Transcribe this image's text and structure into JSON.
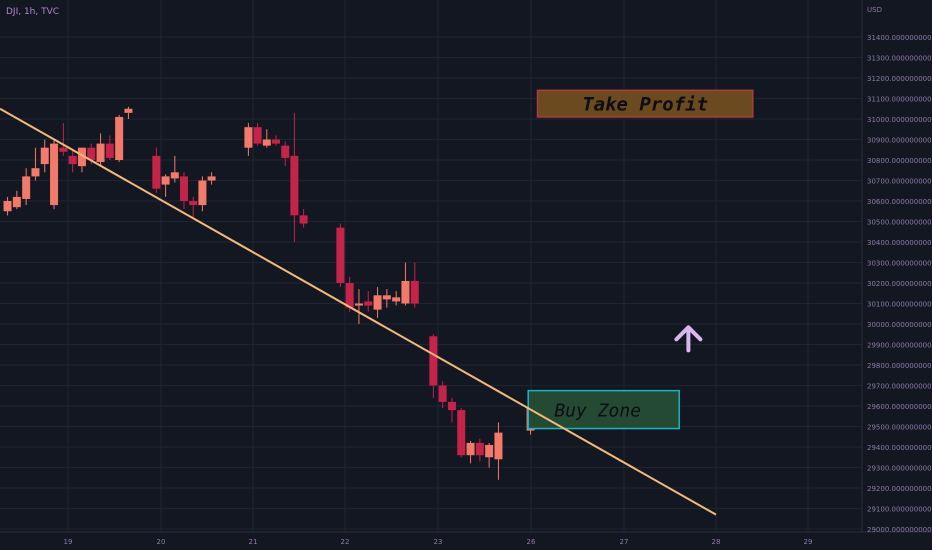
{
  "header": {
    "symbol_label": "DJI, 1h, TVC"
  },
  "price_axis": {
    "currency": "USD",
    "ticks": [
      "31400.000000000",
      "31300.000000000",
      "31200.000000000",
      "31100.000000000",
      "31000.000000000",
      "30900.000000000",
      "30800.000000000",
      "30700.000000000",
      "30600.000000000",
      "30500.000000000",
      "30400.000000000",
      "30300.000000000",
      "30200.000000000",
      "30100.000000000",
      "30000.000000000",
      "29900.000000000",
      "29800.000000000",
      "29700.000000000",
      "29600.000000000",
      "29500.000000000",
      "29400.000000000",
      "29300.000000000",
      "29200.000000000",
      "29100.000000000",
      "29000.000000000"
    ]
  },
  "time_axis": {
    "ticks": [
      "19",
      "20",
      "21",
      "22",
      "23",
      "26",
      "27",
      "28",
      "29"
    ]
  },
  "annotations": {
    "take_profit": {
      "label": "Take Profit",
      "fill": "#6b4a1f",
      "border": "#b23a3a",
      "price_top": 31140,
      "price_bottom": 31010,
      "from": "25.9",
      "to": "28.4"
    },
    "buy_zone": {
      "label": "Buy Zone",
      "fill": "#244a33",
      "border": "#16b6c4",
      "price_top": 29675,
      "price_bottom": 29490,
      "from": "25.7",
      "to": "27.6"
    },
    "arrow": {
      "direction": "up",
      "color": "#d7b8e8",
      "price": 29930,
      "time": "27.7"
    },
    "trendline": {
      "color": "#f5b97a",
      "from": {
        "time": "18.3",
        "price": 31050
      },
      "to": {
        "time": "28.0",
        "price": 29070
      }
    }
  },
  "colors": {
    "bull": "#f27a6a",
    "bear": "#c4234a",
    "grid": "#1f2433",
    "axis_text": "#8f7aa8",
    "background": "#131722"
  },
  "chart_data": {
    "type": "candlestick",
    "y_unit": "USD",
    "ylim": [
      29000,
      31400
    ],
    "grid": true,
    "series": [
      {
        "candles": [
          {
            "t": "18.35",
            "o": 30550,
            "h": 30620,
            "l": 30530,
            "c": 30600
          },
          {
            "t": "18.45",
            "o": 30570,
            "h": 30650,
            "l": 30560,
            "c": 30620
          },
          {
            "t": "18.55",
            "o": 30610,
            "h": 30760,
            "l": 30580,
            "c": 30720
          },
          {
            "t": "18.65",
            "o": 30720,
            "h": 30860,
            "l": 30700,
            "c": 30760
          },
          {
            "t": "18.75",
            "o": 30780,
            "h": 30900,
            "l": 30740,
            "c": 30860
          },
          {
            "t": "18.85",
            "o": 30580,
            "h": 30900,
            "l": 30560,
            "c": 30880
          },
          {
            "t": "18.95",
            "o": 30860,
            "h": 30980,
            "l": 30820,
            "c": 30840
          },
          {
            "t": "19.05",
            "o": 30820,
            "h": 30850,
            "l": 30740,
            "c": 30780
          },
          {
            "t": "19.15",
            "o": 30770,
            "h": 30860,
            "l": 30740,
            "c": 30860
          },
          {
            "t": "19.25",
            "o": 30860,
            "h": 30880,
            "l": 30780,
            "c": 30800
          },
          {
            "t": "19.35",
            "o": 30790,
            "h": 30930,
            "l": 30770,
            "c": 30880
          },
          {
            "t": "19.45",
            "o": 30880,
            "h": 30920,
            "l": 30800,
            "c": 30810
          },
          {
            "t": "19.55",
            "o": 30800,
            "h": 31020,
            "l": 30790,
            "c": 31010
          },
          {
            "t": "19.65",
            "o": 31030,
            "h": 31060,
            "l": 31000,
            "c": 31050
          },
          {
            "t": "19.95",
            "o": 30820,
            "h": 30860,
            "l": 30640,
            "c": 30660
          },
          {
            "t": "20.05",
            "o": 30680,
            "h": 30730,
            "l": 30620,
            "c": 30720
          },
          {
            "t": "20.15",
            "o": 30710,
            "h": 30820,
            "l": 30690,
            "c": 30740
          },
          {
            "t": "20.25",
            "o": 30720,
            "h": 30740,
            "l": 30560,
            "c": 30600
          },
          {
            "t": "20.35",
            "o": 30600,
            "h": 30620,
            "l": 30520,
            "c": 30580
          },
          {
            "t": "20.45",
            "o": 30580,
            "h": 30720,
            "l": 30550,
            "c": 30700
          },
          {
            "t": "20.55",
            "o": 30700,
            "h": 30740,
            "l": 30680,
            "c": 30720
          },
          {
            "t": "20.95",
            "o": 30860,
            "h": 30980,
            "l": 30820,
            "c": 30960
          },
          {
            "t": "21.05",
            "o": 30960,
            "h": 30980,
            "l": 30870,
            "c": 30880
          },
          {
            "t": "21.15",
            "o": 30870,
            "h": 30950,
            "l": 30860,
            "c": 30900
          },
          {
            "t": "21.25",
            "o": 30900,
            "h": 30920,
            "l": 30870,
            "c": 30880
          },
          {
            "t": "21.35",
            "o": 30870,
            "h": 30890,
            "l": 30770,
            "c": 30810
          },
          {
            "t": "21.45",
            "o": 30820,
            "h": 31030,
            "l": 30400,
            "c": 30530
          },
          {
            "t": "21.55",
            "o": 30530,
            "h": 30560,
            "l": 30470,
            "c": 30490
          },
          {
            "t": "21.95",
            "o": 30470,
            "h": 30490,
            "l": 30180,
            "c": 30200
          },
          {
            "t": "22.05",
            "o": 30200,
            "h": 30230,
            "l": 30060,
            "c": 30080
          },
          {
            "t": "22.15",
            "o": 30090,
            "h": 30170,
            "l": 30000,
            "c": 30100
          },
          {
            "t": "22.25",
            "o": 30110,
            "h": 30160,
            "l": 30060,
            "c": 30090
          },
          {
            "t": "22.35",
            "o": 30070,
            "h": 30180,
            "l": 30030,
            "c": 30140
          },
          {
            "t": "22.45",
            "o": 30120,
            "h": 30170,
            "l": 30080,
            "c": 30140
          },
          {
            "t": "22.55",
            "o": 30110,
            "h": 30160,
            "l": 30090,
            "c": 30130
          },
          {
            "t": "22.65",
            "o": 30100,
            "h": 30300,
            "l": 30090,
            "c": 30210
          },
          {
            "t": "22.75",
            "o": 30210,
            "h": 30300,
            "l": 30080,
            "c": 30100
          },
          {
            "t": "22.95",
            "o": 29940,
            "h": 29950,
            "l": 29640,
            "c": 29700
          },
          {
            "t": "23.05",
            "o": 29700,
            "h": 29720,
            "l": 29590,
            "c": 29620
          },
          {
            "t": "23.15",
            "o": 29620,
            "h": 29640,
            "l": 29520,
            "c": 29580
          },
          {
            "t": "23.25",
            "o": 29580,
            "h": 29590,
            "l": 29350,
            "c": 29360
          },
          {
            "t": "23.35",
            "o": 29360,
            "h": 29430,
            "l": 29320,
            "c": 29420
          },
          {
            "t": "23.45",
            "o": 29420,
            "h": 29440,
            "l": 29330,
            "c": 29360
          },
          {
            "t": "23.55",
            "o": 29350,
            "h": 29420,
            "l": 29300,
            "c": 29410
          },
          {
            "t": "23.65",
            "o": 29340,
            "h": 29520,
            "l": 29240,
            "c": 29470
          },
          {
            "t": "25.75",
            "o": 29480,
            "h": 29620,
            "l": 29460,
            "c": 29590
          }
        ]
      }
    ]
  }
}
